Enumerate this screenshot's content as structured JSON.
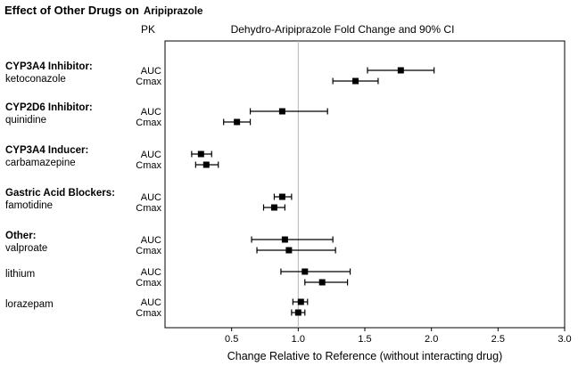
{
  "chart_data": {
    "type": "scatter",
    "subtype": "forest-plot",
    "title": "Effect of Other Drugs on",
    "title_emphasis": "Aripiprazole",
    "column_header_pk": "PK",
    "plot_header": "Dehydro-Aripiprazole Fold Change and 90% CI",
    "xlabel": "Change Relative to Reference (without interacting drug)",
    "xlim": [
      0,
      3.0
    ],
    "xticks": [
      0.5,
      1.0,
      1.5,
      2.0,
      2.5,
      3.0
    ],
    "reference_line_x": 1.0,
    "row_labels": [
      "AUC",
      "Cmax"
    ],
    "marker": "filled-square",
    "colors": {
      "marker": "#000000",
      "reference_line": "#b3b3b3",
      "ci_line": "#000000"
    },
    "groups": [
      {
        "heading": "CYP3A4 Inhibitor:",
        "drug": "ketoconazole",
        "auc": {
          "value": 1.77,
          "ci_low": 1.52,
          "ci_high": 2.02
        },
        "cmax": {
          "value": 1.43,
          "ci_low": 1.26,
          "ci_high": 1.6
        }
      },
      {
        "heading": "CYP2D6 Inhibitor:",
        "drug": "quinidine",
        "auc": {
          "value": 0.88,
          "ci_low": 0.64,
          "ci_high": 1.22
        },
        "cmax": {
          "value": 0.54,
          "ci_low": 0.44,
          "ci_high": 0.64
        }
      },
      {
        "heading": "CYP3A4 Inducer:",
        "drug": "carbamazepine",
        "auc": {
          "value": 0.27,
          "ci_low": 0.2,
          "ci_high": 0.35
        },
        "cmax": {
          "value": 0.31,
          "ci_low": 0.23,
          "ci_high": 0.4
        }
      },
      {
        "heading": "Gastric Acid Blockers:",
        "drug": "famotidine",
        "auc": {
          "value": 0.88,
          "ci_low": 0.82,
          "ci_high": 0.95
        },
        "cmax": {
          "value": 0.82,
          "ci_low": 0.74,
          "ci_high": 0.9
        }
      },
      {
        "heading": "Other:",
        "drug": "valproate",
        "auc": {
          "value": 0.9,
          "ci_low": 0.65,
          "ci_high": 1.26
        },
        "cmax": {
          "value": 0.93,
          "ci_low": 0.69,
          "ci_high": 1.28
        }
      },
      {
        "heading": "",
        "drug": "lithium",
        "auc": {
          "value": 1.05,
          "ci_low": 0.87,
          "ci_high": 1.39
        },
        "cmax": {
          "value": 1.18,
          "ci_low": 1.05,
          "ci_high": 1.37
        }
      },
      {
        "heading": "",
        "drug": "lorazepam",
        "auc": {
          "value": 1.02,
          "ci_low": 0.96,
          "ci_high": 1.07
        },
        "cmax": {
          "value": 1.0,
          "ci_low": 0.95,
          "ci_high": 1.05
        }
      }
    ]
  }
}
